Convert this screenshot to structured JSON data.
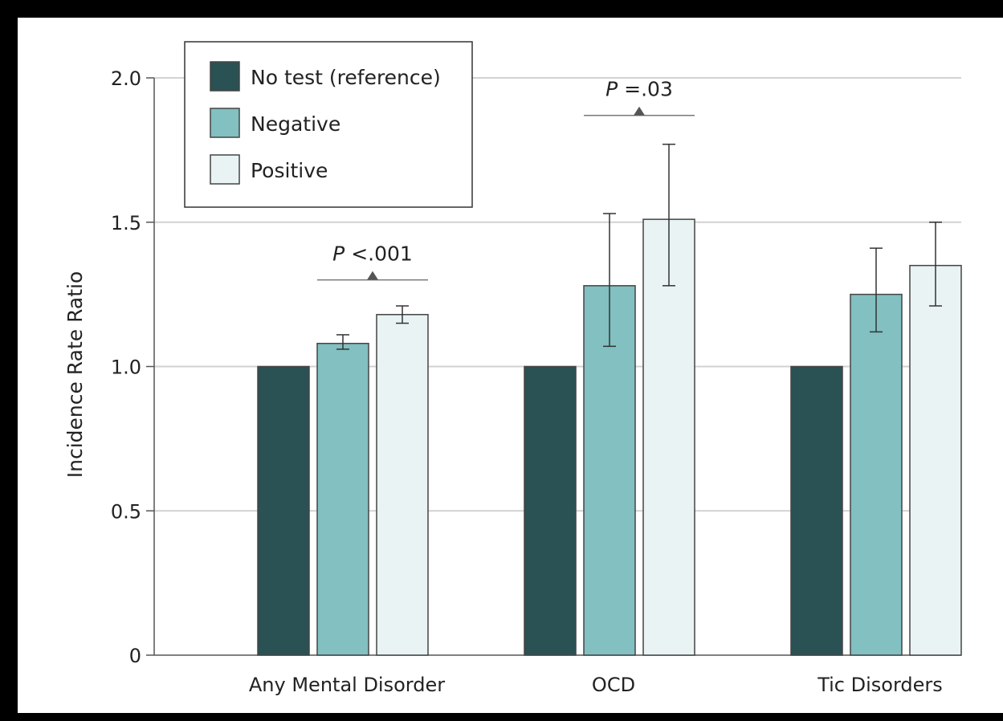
{
  "chart_data": {
    "type": "bar",
    "title": "",
    "xlabel": "",
    "ylabel": "Incidence Rate Ratio",
    "ylim": [
      0,
      2.0
    ],
    "yticks": [
      {
        "value": 0,
        "label": "0"
      },
      {
        "value": 0.5,
        "label": "0.5"
      },
      {
        "value": 1.0,
        "label": "1.0"
      },
      {
        "value": 1.5,
        "label": "1.5"
      },
      {
        "value": 2.0,
        "label": "2.0"
      }
    ],
    "grid": true,
    "legend_position": "top-left",
    "categories": [
      "Any Mental Disorder",
      "OCD",
      "Tic Disorders"
    ],
    "series": [
      {
        "name": "No test (reference)",
        "color": "#2a5153",
        "values": [
          1.0,
          1.0,
          1.0
        ],
        "ci_low": [
          null,
          null,
          null
        ],
        "ci_high": [
          null,
          null,
          null
        ]
      },
      {
        "name": "Negative",
        "color": "#82c0c1",
        "values": [
          1.08,
          1.28,
          1.25
        ],
        "ci_low": [
          1.06,
          1.07,
          1.12
        ],
        "ci_high": [
          1.11,
          1.53,
          1.41
        ]
      },
      {
        "name": "Positive",
        "color": "#e9f3f4",
        "values": [
          1.18,
          1.51,
          1.35
        ],
        "ci_low": [
          1.15,
          1.28,
          1.21
        ],
        "ci_high": [
          1.21,
          1.77,
          1.5
        ]
      }
    ],
    "annotations": [
      {
        "category_index": 0,
        "prefix": "P",
        "text": " <.001",
        "y": 1.3
      },
      {
        "category_index": 1,
        "prefix": "P",
        "text": " =.03",
        "y": 1.87
      }
    ]
  }
}
